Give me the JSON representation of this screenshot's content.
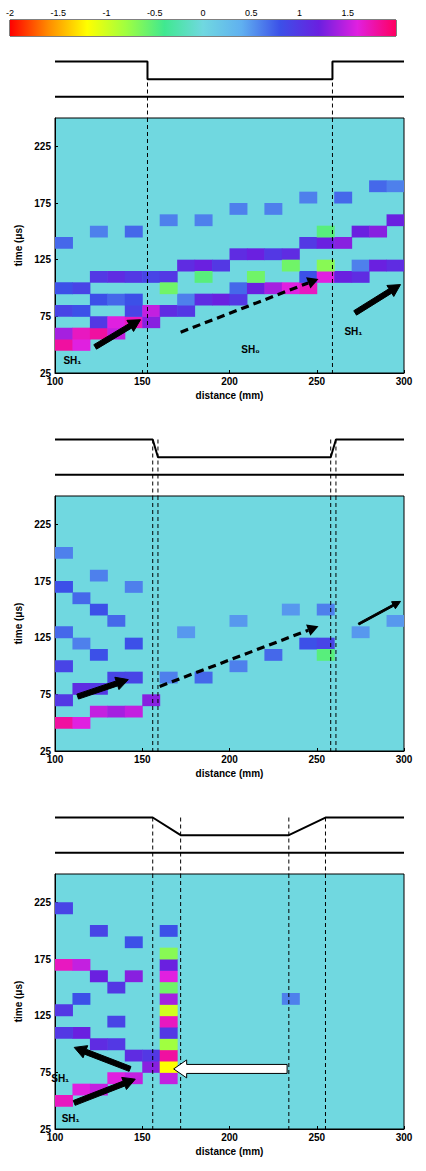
{
  "colorbar": {
    "range": [
      -2,
      2
    ],
    "ticks": [
      -2,
      -1.5,
      -1,
      -0.5,
      0,
      0.5,
      1,
      1.5
    ],
    "colors": [
      "#ff0000",
      "#ff8c00",
      "#ffff00",
      "#a0ff40",
      "#40e890",
      "#70d8e0",
      "#60b0f0",
      "#3c50e8",
      "#6a20e0",
      "#e020e0",
      "#ff0060"
    ]
  },
  "chart_data": [
    {
      "type": "heatmap",
      "x_label": "distance (mm)",
      "y_label": "time (μs)",
      "xlim": [
        100,
        300
      ],
      "xticks": [
        100,
        150,
        200,
        250,
        300
      ],
      "ylim": [
        25,
        250
      ],
      "yticks": [
        25,
        75,
        125,
        175,
        225
      ],
      "cell_width": 10,
      "cell_height": 10,
      "cells": [
        [
          105,
          50,
          1.8
        ],
        [
          105,
          60,
          1.4
        ],
        [
          115,
          50,
          1.6
        ],
        [
          115,
          60,
          1.7
        ],
        [
          125,
          60,
          1.8
        ],
        [
          125,
          70,
          1.0
        ],
        [
          135,
          60,
          1.5
        ],
        [
          135,
          70,
          1.6
        ],
        [
          145,
          70,
          1.7
        ],
        [
          145,
          80,
          0.9
        ],
        [
          155,
          70,
          1.3
        ],
        [
          155,
          80,
          1.5
        ],
        [
          165,
          80,
          1.1
        ],
        [
          175,
          80,
          1.0
        ],
        [
          175,
          90,
          0.6
        ],
        [
          185,
          90,
          1.1
        ],
        [
          195,
          90,
          1.2
        ],
        [
          205,
          90,
          1.0
        ],
        [
          205,
          100,
          0.7
        ],
        [
          215,
          100,
          1.2
        ],
        [
          225,
          100,
          1.4
        ],
        [
          235,
          100,
          1.6
        ],
        [
          245,
          100,
          1.7
        ],
        [
          245,
          110,
          0.8
        ],
        [
          255,
          110,
          1.6
        ],
        [
          265,
          110,
          1.2
        ],
        [
          275,
          110,
          1.1
        ],
        [
          275,
          120,
          0.6
        ],
        [
          285,
          120,
          1.2
        ],
        [
          295,
          120,
          1.1
        ],
        [
          105,
          100,
          0.8
        ],
        [
          115,
          100,
          0.9
        ],
        [
          125,
          110,
          1.0
        ],
        [
          135,
          110,
          1.1
        ],
        [
          145,
          110,
          1.0
        ],
        [
          155,
          110,
          0.9
        ],
        [
          165,
          110,
          1.0
        ],
        [
          175,
          120,
          1.1
        ],
        [
          185,
          120,
          1.2
        ],
        [
          195,
          120,
          1.0
        ],
        [
          205,
          130,
          1.1
        ],
        [
          215,
          130,
          1.2
        ],
        [
          225,
          130,
          1.0
        ],
        [
          235,
          130,
          1.1
        ],
        [
          245,
          140,
          1.0
        ],
        [
          255,
          140,
          1.2
        ],
        [
          265,
          140,
          1.3
        ],
        [
          275,
          150,
          1.2
        ],
        [
          285,
          150,
          1.3
        ],
        [
          295,
          160,
          1.2
        ],
        [
          105,
          140,
          0.7
        ],
        [
          125,
          150,
          0.6
        ],
        [
          145,
          150,
          0.7
        ],
        [
          165,
          160,
          0.6
        ],
        [
          185,
          160,
          0.6
        ],
        [
          205,
          170,
          0.6
        ],
        [
          225,
          170,
          0.6
        ],
        [
          245,
          180,
          0.6
        ],
        [
          265,
          180,
          0.7
        ],
        [
          285,
          190,
          0.7
        ],
        [
          295,
          190,
          0.6
        ],
        [
          105,
          80,
          0.9
        ],
        [
          115,
          80,
          0.8
        ],
        [
          125,
          90,
          0.8
        ],
        [
          135,
          90,
          0.7
        ],
        [
          145,
          90,
          0.8
        ],
        [
          165,
          100,
          -0.6
        ],
        [
          185,
          110,
          -0.5
        ],
        [
          215,
          110,
          -0.6
        ],
        [
          235,
          120,
          -0.6
        ],
        [
          255,
          120,
          -0.7
        ],
        [
          255,
          150,
          -0.5
        ]
      ],
      "dashed_lines": [
        153,
        259
      ],
      "arrows": [
        {
          "from": [
            123,
            48
          ],
          "to": [
            149,
            72
          ],
          "line_style": "solid",
          "color": "black"
        },
        {
          "from": [
            172,
            61
          ],
          "to": [
            251,
            108
          ],
          "line_style": "dashed",
          "color": "black"
        },
        {
          "from": [
            272,
            78
          ],
          "to": [
            298,
            103
          ],
          "line_style": "solid",
          "color": "black"
        }
      ],
      "annotations": [
        {
          "text": "SH₁",
          "at": [
            110,
            36
          ]
        },
        {
          "text": "SH₀",
          "at": [
            212,
            46
          ]
        },
        {
          "text": "SH₁",
          "at": [
            271,
            62
          ]
        }
      ]
    },
    {
      "type": "heatmap",
      "x_label": "distance (mm)",
      "y_label": "time (μs)",
      "xlim": [
        100,
        300
      ],
      "xticks": [
        100,
        150,
        200,
        250,
        300
      ],
      "ylim": [
        25,
        250
      ],
      "yticks": [
        25,
        75,
        125,
        175,
        225
      ],
      "cell_width": 10,
      "cell_height": 10,
      "cells": [
        [
          105,
          50,
          1.8
        ],
        [
          115,
          50,
          1.6
        ],
        [
          125,
          60,
          1.5
        ],
        [
          135,
          60,
          1.4
        ],
        [
          145,
          60,
          1.5
        ],
        [
          155,
          70,
          1.3
        ],
        [
          105,
          70,
          1.0
        ],
        [
          115,
          80,
          1.1
        ],
        [
          125,
          80,
          1.0
        ],
        [
          135,
          90,
          0.9
        ],
        [
          145,
          90,
          0.9
        ],
        [
          105,
          100,
          0.9
        ],
        [
          125,
          110,
          0.8
        ],
        [
          145,
          120,
          0.8
        ],
        [
          105,
          170,
          0.8
        ],
        [
          115,
          160,
          0.7
        ],
        [
          125,
          150,
          0.8
        ],
        [
          135,
          140,
          0.7
        ],
        [
          105,
          200,
          0.6
        ],
        [
          125,
          180,
          0.6
        ],
        [
          145,
          170,
          0.6
        ],
        [
          105,
          130,
          0.7
        ],
        [
          115,
          120,
          0.6
        ],
        [
          165,
          90,
          0.6
        ],
        [
          185,
          90,
          0.7
        ],
        [
          205,
          100,
          0.6
        ],
        [
          225,
          110,
          0.7
        ],
        [
          245,
          120,
          0.8
        ],
        [
          255,
          120,
          0.9
        ],
        [
          175,
          130,
          0.5
        ],
        [
          205,
          140,
          0.5
        ],
        [
          235,
          150,
          0.5
        ],
        [
          255,
          150,
          0.6
        ],
        [
          275,
          130,
          0.5
        ],
        [
          295,
          140,
          0.5
        ],
        [
          255,
          110,
          -0.5
        ]
      ],
      "dashed_lines": [
        156,
        159,
        258,
        261
      ],
      "arrows": [
        {
          "from": [
            113,
            73
          ],
          "to": [
            142,
            88
          ],
          "line_style": "solid",
          "color": "black"
        },
        {
          "from": [
            160,
            82
          ],
          "to": [
            251,
            135
          ],
          "line_style": "dashed",
          "color": "black"
        },
        {
          "from": [
            274,
            137
          ],
          "to": [
            298,
            157
          ],
          "line_style": "thin",
          "color": "black"
        }
      ],
      "annotations": []
    },
    {
      "type": "heatmap",
      "x_label": "distance (mm)",
      "y_label": "time (μs)",
      "xlim": [
        100,
        300
      ],
      "xticks": [
        100,
        150,
        200,
        250,
        300
      ],
      "ylim": [
        25,
        250
      ],
      "yticks": [
        25,
        75,
        125,
        175,
        225
      ],
      "cell_width": 10,
      "cell_height": 10,
      "cells": [
        [
          105,
          50,
          1.7
        ],
        [
          115,
          60,
          1.6
        ],
        [
          125,
          60,
          1.5
        ],
        [
          135,
          70,
          1.6
        ],
        [
          145,
          70,
          1.5
        ],
        [
          155,
          80,
          1.3
        ],
        [
          155,
          90,
          1.0
        ],
        [
          145,
          90,
          1.1
        ],
        [
          135,
          100,
          1.0
        ],
        [
          125,
          100,
          1.1
        ],
        [
          115,
          110,
          1.2
        ],
        [
          105,
          110,
          1.0
        ],
        [
          105,
          170,
          1.7
        ],
        [
          115,
          170,
          1.5
        ],
        [
          125,
          160,
          1.2
        ],
        [
          105,
          130,
          1.0
        ],
        [
          135,
          150,
          1.0
        ],
        [
          145,
          160,
          1.3
        ],
        [
          105,
          220,
          0.9
        ],
        [
          125,
          200,
          0.9
        ],
        [
          145,
          190,
          0.8
        ],
        [
          115,
          140,
          0.8
        ],
        [
          135,
          120,
          0.9
        ],
        [
          165,
          70,
          1.5
        ],
        [
          165,
          80,
          -1.2
        ],
        [
          165,
          90,
          1.8
        ],
        [
          165,
          100,
          -0.8
        ],
        [
          165,
          110,
          1.0
        ],
        [
          165,
          120,
          1.7
        ],
        [
          165,
          130,
          -1.0
        ],
        [
          165,
          140,
          1.4
        ],
        [
          165,
          150,
          -0.6
        ],
        [
          165,
          160,
          1.6
        ],
        [
          165,
          170,
          1.2
        ],
        [
          165,
          180,
          -0.7
        ],
        [
          165,
          200,
          0.8
        ],
        [
          235,
          140,
          0.6
        ]
      ],
      "dashed_lines": [
        156,
        172,
        234,
        255
      ],
      "arrows": [
        {
          "from": [
            111,
            48
          ],
          "to": [
            146,
            69
          ],
          "line_style": "solid",
          "color": "black"
        },
        {
          "from": [
            143,
            78
          ],
          "to": [
            111,
            97
          ],
          "line_style": "solid",
          "color": "black"
        },
        {
          "from": [
            233,
            78
          ],
          "to": [
            168,
            78
          ],
          "line_style": "solid",
          "color": "white"
        }
      ],
      "annotations": [
        {
          "text": "SH₁",
          "at": [
            109,
            34
          ]
        },
        {
          "text": "SH₁",
          "at": [
            103,
            70
          ]
        }
      ]
    }
  ]
}
